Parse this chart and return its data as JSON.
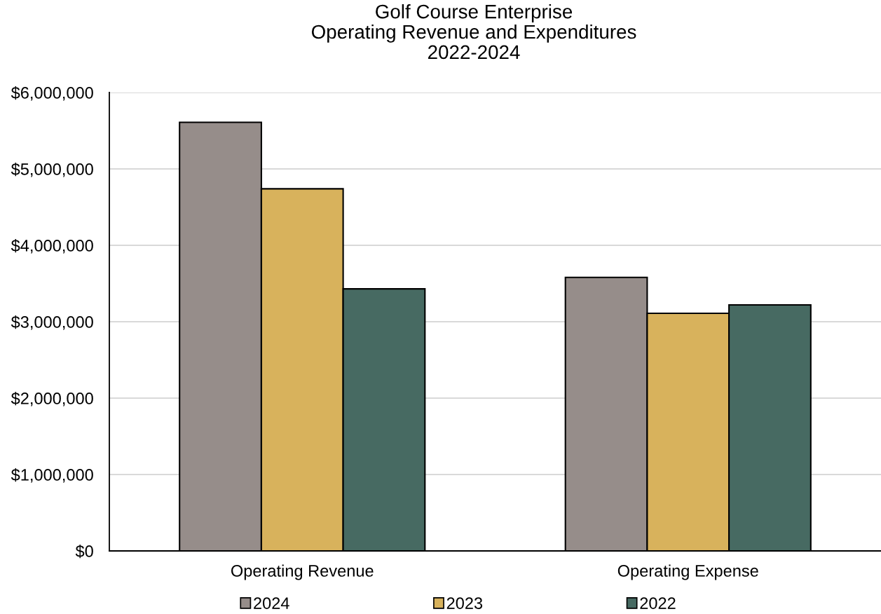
{
  "chart_data": {
    "type": "bar",
    "title": "Golf Course Enterprise\nOperating Revenue and Expenditures\n2022-2024",
    "categories": [
      "Operating Revenue",
      "Operating Expense"
    ],
    "series": [
      {
        "name": "2024",
        "color": "#968d8a",
        "values": [
          5610000,
          3580000
        ]
      },
      {
        "name": "2023",
        "color": "#d8b25c",
        "values": [
          4740000,
          3110000
        ]
      },
      {
        "name": "2022",
        "color": "#476a62",
        "values": [
          3430000,
          3220000
        ]
      }
    ],
    "ylim": [
      0,
      6000000
    ],
    "yticks": [
      {
        "value": 0,
        "label": "$0"
      },
      {
        "value": 1000000,
        "label": "$1,000,000"
      },
      {
        "value": 2000000,
        "label": "$2,000,000"
      },
      {
        "value": 3000000,
        "label": "$3,000,000"
      },
      {
        "value": 4000000,
        "label": "$4,000,000"
      },
      {
        "value": 5000000,
        "label": "$5,000,000"
      },
      {
        "value": 6000000,
        "label": "$6,000,000"
      }
    ],
    "grid": "y",
    "legend": "bottom"
  }
}
